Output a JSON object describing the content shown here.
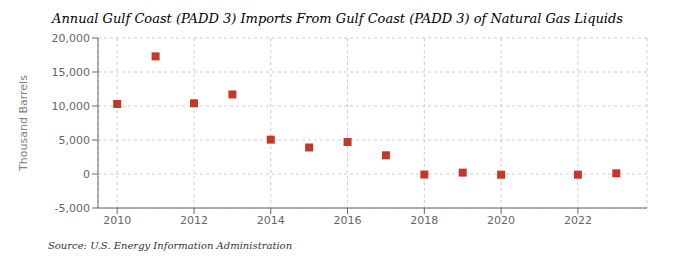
{
  "chart_data": {
    "type": "scatter",
    "title": "Annual Gulf Coast (PADD 3) Imports From Gulf Coast (PADD 3) of Natural Gas Liquids",
    "ylabel": "Thousand Barrels",
    "annotations": [
      "Source: U.S. Energy Information Administration"
    ],
    "x": [
      2010,
      2011,
      2012,
      2013,
      2014,
      2015,
      2016,
      2017,
      2018,
      2019,
      2020,
      2022,
      2023
    ],
    "values": [
      10300,
      17300,
      10400,
      11700,
      5050,
      3900,
      4700,
      2750,
      -80,
      200,
      -100,
      -100,
      100
    ],
    "color": "#c0392b",
    "marker": "square",
    "xlim": [
      2009.5,
      2023.8
    ],
    "xticks": [
      2010,
      2012,
      2014,
      2016,
      2018,
      2020,
      2022
    ],
    "ylim": [
      -5000,
      20000
    ],
    "yticks": [
      {
        "value": -5000,
        "label": "-5,000"
      },
      0,
      {
        "value": 5000,
        "label": "5,000"
      },
      {
        "value": 10000,
        "label": "10,000"
      },
      {
        "value": 15000,
        "label": "15,000"
      },
      {
        "value": 20000,
        "label": "20,000"
      }
    ],
    "grid": true
  }
}
